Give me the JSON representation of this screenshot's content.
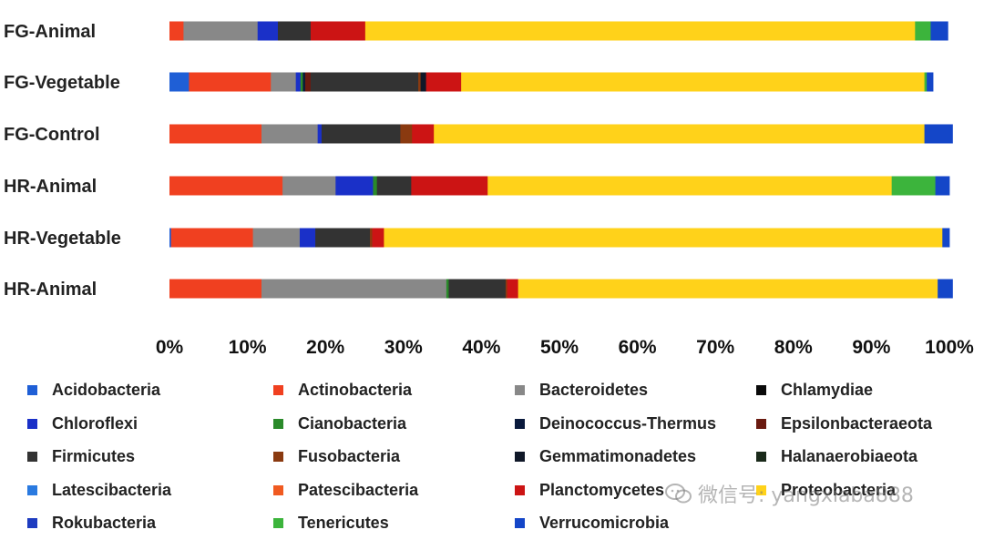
{
  "chart_data": {
    "type": "bar",
    "orientation": "horizontal",
    "stacked": true,
    "normalized_percent": true,
    "categories": [
      "FG-Animal",
      "FG-Vegetable",
      "FG-Control",
      "HR-Animal",
      "HR-Vegetable",
      "HR-Animal"
    ],
    "xlim": [
      0,
      100
    ],
    "x_ticks": [
      "0%",
      "10%",
      "20%",
      "30%",
      "40%",
      "50%",
      "60%",
      "70%",
      "80%",
      "90%",
      "100%"
    ],
    "grid": false,
    "legend_position": "bottom",
    "series": [
      {
        "name": "Acidobacteria",
        "color": "#1f5fd6",
        "values": [
          0,
          2.5,
          0,
          0,
          0.2,
          0
        ]
      },
      {
        "name": "Actinobacteria",
        "color": "#f04020",
        "values": [
          1.8,
          10.5,
          11.8,
          14.5,
          10.5,
          11.8
        ]
      },
      {
        "name": "Bacteroidetes",
        "color": "#888888",
        "values": [
          9.5,
          3.2,
          7.2,
          6.8,
          6.0,
          23.7
        ]
      },
      {
        "name": "Chlamydiae",
        "color": "#0a0a0a",
        "values": [
          0,
          0,
          0,
          0,
          0,
          0
        ]
      },
      {
        "name": "Chloroflexi",
        "color": "#1a30c8",
        "values": [
          2.6,
          0.6,
          0.5,
          4.8,
          2.0,
          0
        ]
      },
      {
        "name": "Cianobacteria",
        "color": "#2a8a2a",
        "values": [
          0,
          0.3,
          0,
          0.5,
          0,
          0.3
        ]
      },
      {
        "name": "Deinococcus-Thermus",
        "color": "#0a1a3c",
        "values": [
          0,
          0.3,
          0,
          0,
          0,
          0
        ]
      },
      {
        "name": "Epsilonbacteraeota",
        "color": "#6a1a10",
        "values": [
          0,
          0.7,
          0,
          0,
          0,
          0
        ]
      },
      {
        "name": "Firmicutes",
        "color": "#333333",
        "values": [
          4.2,
          13.8,
          10.1,
          4.4,
          7.0,
          7.3
        ]
      },
      {
        "name": "Fusobacteria",
        "color": "#8a3a10",
        "values": [
          0,
          0.3,
          1.5,
          0,
          0.3,
          0.2
        ]
      },
      {
        "name": "Gemmatimonadetes",
        "color": "#101828",
        "values": [
          0,
          0.7,
          0,
          0,
          0,
          0
        ]
      },
      {
        "name": "Halanaerobiaeota",
        "color": "#1a2a1a",
        "values": [
          0,
          0,
          0,
          0,
          0,
          0
        ]
      },
      {
        "name": "Latescibacteria",
        "color": "#2a7ae0",
        "values": [
          0,
          0,
          0,
          0,
          0,
          0
        ]
      },
      {
        "name": "Patescibacteria",
        "color": "#f05a20",
        "values": [
          0,
          0,
          0,
          0,
          0,
          0
        ]
      },
      {
        "name": "Planctomycetes",
        "color": "#cc1414",
        "values": [
          7.0,
          4.5,
          2.8,
          9.8,
          1.5,
          1.4
        ]
      },
      {
        "name": "Proteobacteria",
        "color": "#ffd21a",
        "values": [
          70.5,
          59.4,
          62.9,
          51.8,
          71.6,
          53.8
        ]
      },
      {
        "name": "Rokubacteria",
        "color": "#1e3cc0",
        "values": [
          0,
          0,
          0,
          0,
          0,
          0
        ]
      },
      {
        "name": "Tenericutes",
        "color": "#3cb43c",
        "values": [
          2.0,
          0.3,
          0,
          5.6,
          0,
          0
        ]
      },
      {
        "name": "Verrucomicrobia",
        "color": "#1446c8",
        "values": [
          2.2,
          0.8,
          3.6,
          1.8,
          0.9,
          1.9
        ]
      }
    ]
  },
  "watermark": {
    "text": "微信号: yangxiaba888"
  }
}
